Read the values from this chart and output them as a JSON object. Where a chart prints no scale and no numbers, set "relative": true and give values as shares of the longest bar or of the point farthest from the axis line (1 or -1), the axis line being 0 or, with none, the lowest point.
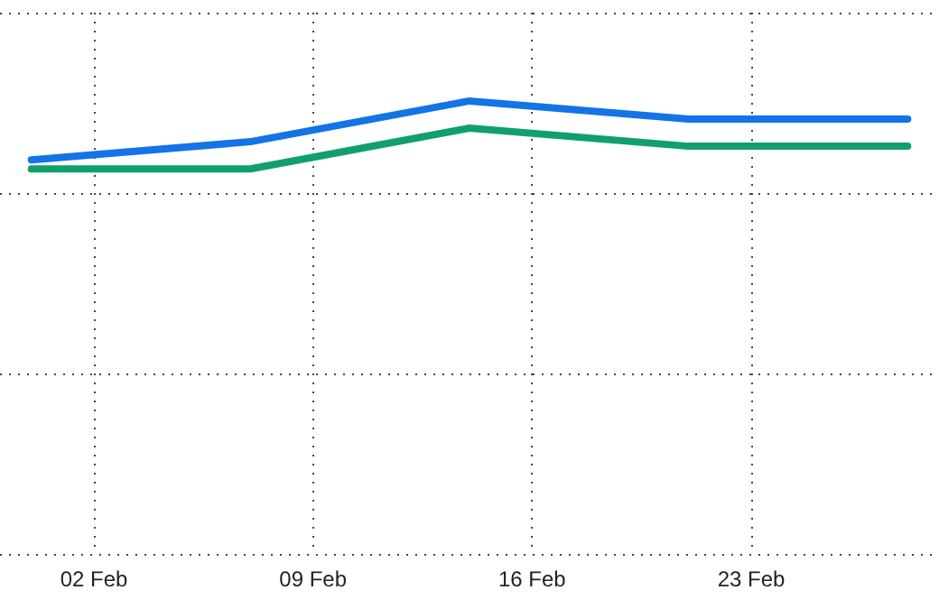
{
  "chart_data": {
    "type": "line",
    "relative": true,
    "x": [
      "--01-31",
      "--02-07",
      "--02-14",
      "--02-21",
      "--02-28"
    ],
    "series": [
      {
        "color": "#1473e6",
        "values": [
          0.87,
          0.91,
          1,
          0.96,
          0.96
        ]
      },
      {
        "color": "#11a06b",
        "values": [
          0.85,
          0.85,
          0.94,
          0.9,
          0.9
        ]
      }
    ],
    "xlim": [
      "--01-30",
      "--03-01"
    ],
    "xticks": [
      {
        "value": "--02-02",
        "label": "02 Feb"
      },
      {
        "value": "--02-09",
        "label": "09 Feb"
      },
      {
        "value": "--02-16",
        "label": "16 Feb"
      },
      {
        "value": "--02-23",
        "label": "23 Feb"
      }
    ],
    "grid": true,
    "marker": "none",
    "line_style": "solid",
    "tick_labels": "x"
  }
}
